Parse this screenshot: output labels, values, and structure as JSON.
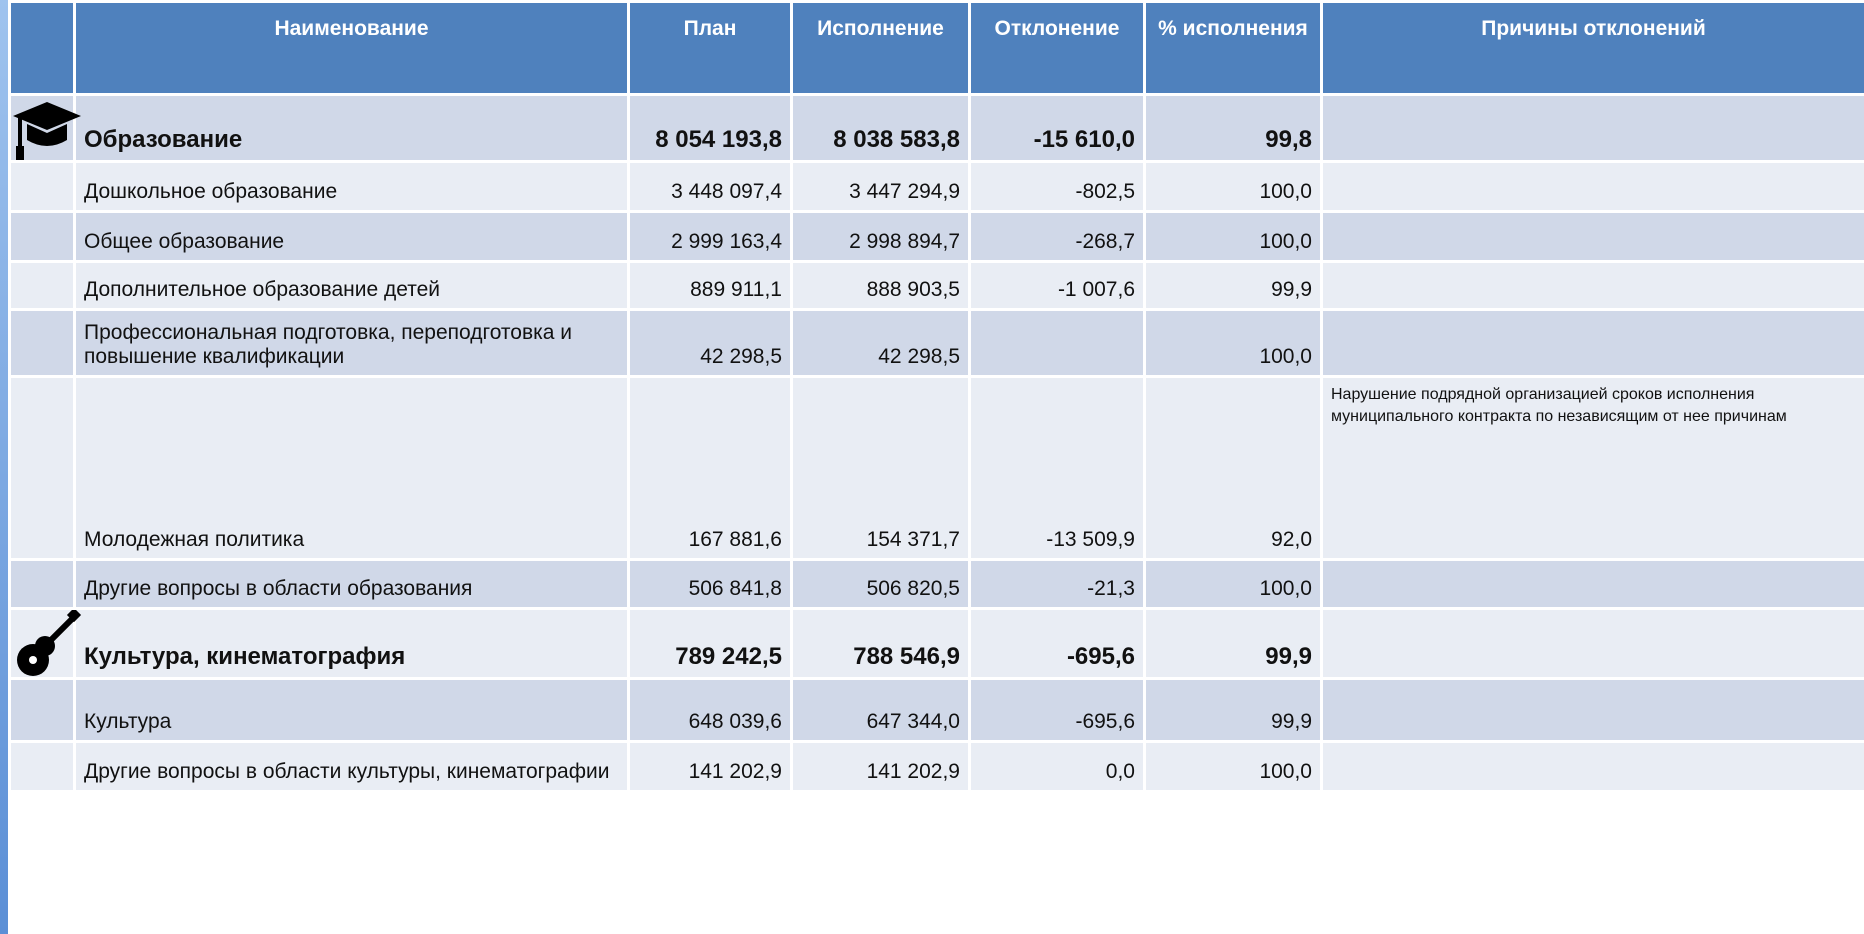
{
  "table": {
    "header": [
      "Наименование",
      "План",
      "Исполнение",
      "Отклонение",
      "% исполнения",
      "Причины отклонений"
    ],
    "sections": [
      {
        "name": "Образование",
        "plan": "8 054 193,8",
        "execution": "8 038 583,8",
        "deviation": "-15 610,0",
        "percent": "99,8",
        "rows": [
          {
            "name": "Дошкольное образование",
            "plan": "3 448 097,4",
            "execution": "3 447 294,9",
            "deviation": "-802,5",
            "percent": "100,0"
          },
          {
            "name": "Общее образование",
            "plan": "2 999 163,4",
            "execution": "2 998 894,7",
            "deviation": "-268,7",
            "percent": "100,0"
          },
          {
            "name": "Дополнительное образование детей",
            "plan": "889 911,1",
            "execution": "888 903,5",
            "deviation": "-1 007,6",
            "percent": "99,9"
          },
          {
            "name": "Профессиональная подготовка, переподготовка и повышение квалификации",
            "plan": "42 298,5",
            "execution": "42 298,5",
            "percent": "100,0"
          },
          {
            "name": "Молодежная политика",
            "plan": "167 881,6",
            "execution": "154 371,7",
            "deviation": "-13 509,9",
            "percent": "92,0",
            "reason": "Нарушение подрядной организацией сроков исполнения муниципального контракта по независящим от нее причинам"
          },
          {
            "name": "Другие вопросы в области образования",
            "plan": "506 841,8",
            "execution": "506 820,5",
            "deviation": "-21,3",
            "percent": "100,0"
          }
        ]
      },
      {
        "name": "Культура, кинематография",
        "plan": "789 242,5",
        "execution": "788 546,9",
        "deviation": "-695,6",
        "percent": "99,9",
        "rows": [
          {
            "name": "Культура",
            "plan": "648 039,6",
            "execution": "647 344,0",
            "deviation": "-695,6",
            "percent": "99,9"
          },
          {
            "name": "Другие вопросы в области культуры, кинематографии",
            "plan": "141 202,9",
            "execution": "141 202,9",
            "deviation": "0,0",
            "percent": "100,0"
          }
        ]
      }
    ]
  }
}
